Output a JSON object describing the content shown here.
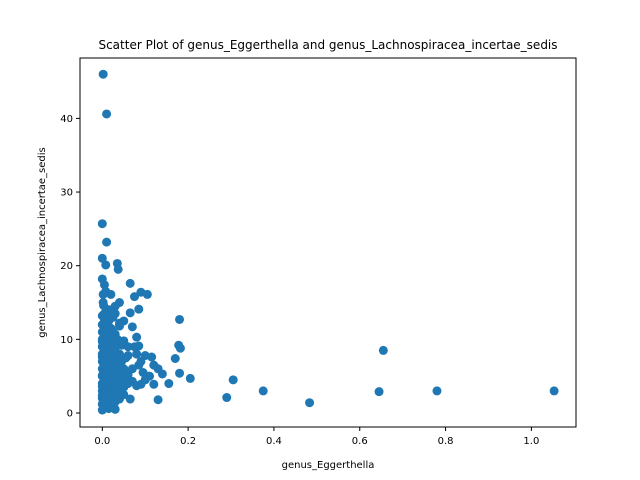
{
  "chart_data": {
    "type": "scatter",
    "title": "Scatter Plot of genus_Eggerthella and genus_Lachnospiracea_incertae_sedis",
    "xlabel": "genus_Eggerthella",
    "ylabel": "genus_Lachnospiracea_incertae_sedis",
    "xlim": [
      -0.052,
      1.104
    ],
    "ylim": [
      -1.9,
      48.2
    ],
    "xticks": [
      0.0,
      0.2,
      0.4,
      0.6,
      0.8,
      1.0
    ],
    "xtick_labels": [
      "0.0",
      "0.2",
      "0.4",
      "0.6",
      "0.8",
      "1.0"
    ],
    "yticks": [
      0,
      10,
      20,
      30,
      40
    ],
    "ytick_labels": [
      "0",
      "10",
      "20",
      "30",
      "40"
    ],
    "grid": false,
    "marker_color": "#1f77b4",
    "series": [
      {
        "points": [
          [
            0.002,
            46.0
          ],
          [
            0.01,
            40.6
          ],
          [
            0.0,
            25.7
          ],
          [
            0.01,
            23.2
          ],
          [
            0.0,
            21.0
          ],
          [
            0.008,
            20.1
          ],
          [
            0.035,
            20.3
          ],
          [
            0.037,
            19.5
          ],
          [
            0.0,
            18.2
          ],
          [
            0.005,
            17.4
          ],
          [
            0.065,
            17.6
          ],
          [
            0.09,
            16.4
          ],
          [
            0.105,
            16.1
          ],
          [
            0.008,
            16.5
          ],
          [
            0.002,
            16.1
          ],
          [
            0.02,
            16.1
          ],
          [
            0.075,
            15.8
          ],
          [
            0.04,
            15.0
          ],
          [
            0.03,
            14.5
          ],
          [
            0.085,
            14.1
          ],
          [
            0.003,
            14.6
          ],
          [
            0.01,
            14.1
          ],
          [
            0.065,
            13.6
          ],
          [
            0.18,
            12.7
          ],
          [
            0.0,
            13.2
          ],
          [
            0.015,
            12.5
          ],
          [
            0.05,
            12.5
          ],
          [
            0.07,
            11.7
          ],
          [
            0.04,
            11.8
          ],
          [
            0.02,
            11.5
          ],
          [
            0.0,
            11.0
          ],
          [
            0.03,
            10.7
          ],
          [
            0.08,
            10.3
          ],
          [
            0.01,
            10.4
          ],
          [
            0.0,
            9.7
          ],
          [
            0.025,
            9.6
          ],
          [
            0.045,
            9.2
          ],
          [
            0.06,
            9.0
          ],
          [
            0.085,
            9.1
          ],
          [
            0.178,
            9.2
          ],
          [
            0.182,
            8.8
          ],
          [
            0.655,
            8.5
          ],
          [
            0.005,
            8.5
          ],
          [
            0.02,
            8.3
          ],
          [
            0.08,
            8.0
          ],
          [
            0.1,
            7.8
          ],
          [
            0.115,
            7.6
          ],
          [
            0.17,
            7.4
          ],
          [
            0.055,
            7.5
          ],
          [
            0.0,
            7.6
          ],
          [
            0.03,
            7.2
          ],
          [
            0.09,
            7.0
          ],
          [
            0.01,
            6.8
          ],
          [
            0.12,
            6.5
          ],
          [
            0.13,
            6.0
          ],
          [
            0.085,
            6.5
          ],
          [
            0.045,
            6.2
          ],
          [
            0.0,
            6.0
          ],
          [
            0.02,
            5.7
          ],
          [
            0.14,
            5.3
          ],
          [
            0.18,
            5.4
          ],
          [
            0.06,
            5.2
          ],
          [
            0.11,
            5.0
          ],
          [
            0.0,
            5.1
          ],
          [
            0.03,
            4.9
          ],
          [
            0.205,
            4.7
          ],
          [
            0.305,
            4.5
          ],
          [
            0.015,
            4.4
          ],
          [
            0.07,
            4.3
          ],
          [
            0.155,
            4.0
          ],
          [
            0.12,
            3.9
          ],
          [
            0.09,
            3.9
          ],
          [
            0.08,
            3.7
          ],
          [
            0.04,
            3.8
          ],
          [
            0.0,
            3.6
          ],
          [
            0.01,
            3.3
          ],
          [
            0.375,
            3.0
          ],
          [
            0.645,
            2.9
          ],
          [
            0.78,
            3.0
          ],
          [
            1.053,
            3.0
          ],
          [
            0.02,
            2.8
          ],
          [
            0.05,
            2.5
          ],
          [
            0.0,
            2.4
          ],
          [
            0.29,
            2.1
          ],
          [
            0.065,
            1.9
          ],
          [
            0.13,
            1.8
          ],
          [
            0.04,
            1.9
          ],
          [
            0.01,
            1.6
          ],
          [
            0.483,
            1.4
          ],
          [
            0.0,
            1.2
          ],
          [
            0.025,
            1.0
          ],
          [
            0.005,
            0.8
          ],
          [
            0.0,
            0.4
          ],
          [
            0.015,
            0.6
          ],
          [
            0.03,
            0.5
          ],
          [
            0.0,
            2.0
          ],
          [
            0.0,
            3.0
          ],
          [
            0.0,
            4.0
          ],
          [
            0.0,
            5.0
          ],
          [
            0.0,
            7.0
          ],
          [
            0.0,
            8.0
          ],
          [
            0.0,
            9.0
          ],
          [
            0.0,
            10.0
          ],
          [
            0.0,
            12.0
          ],
          [
            0.002,
            15.0
          ],
          [
            0.005,
            1.5
          ],
          [
            0.005,
            2.5
          ],
          [
            0.005,
            3.5
          ],
          [
            0.005,
            4.5
          ],
          [
            0.005,
            5.5
          ],
          [
            0.005,
            6.5
          ],
          [
            0.005,
            7.5
          ],
          [
            0.005,
            9.5
          ],
          [
            0.005,
            10.5
          ],
          [
            0.005,
            11.5
          ],
          [
            0.005,
            12.5
          ],
          [
            0.005,
            13.5
          ],
          [
            0.01,
            2.0
          ],
          [
            0.01,
            3.0
          ],
          [
            0.01,
            4.0
          ],
          [
            0.01,
            5.0
          ],
          [
            0.01,
            6.0
          ],
          [
            0.01,
            7.0
          ],
          [
            0.01,
            8.0
          ],
          [
            0.01,
            9.0
          ],
          [
            0.01,
            11.0
          ],
          [
            0.01,
            12.0
          ],
          [
            0.01,
            13.0
          ],
          [
            0.015,
            1.5
          ],
          [
            0.015,
            2.5
          ],
          [
            0.015,
            3.5
          ],
          [
            0.015,
            5.5
          ],
          [
            0.015,
            6.5
          ],
          [
            0.015,
            7.5
          ],
          [
            0.015,
            8.5
          ],
          [
            0.015,
            9.5
          ],
          [
            0.015,
            10.5
          ],
          [
            0.015,
            11.5
          ],
          [
            0.02,
            1.5
          ],
          [
            0.02,
            3.5
          ],
          [
            0.02,
            4.5
          ],
          [
            0.02,
            6.5
          ],
          [
            0.02,
            7.5
          ],
          [
            0.02,
            9.5
          ],
          [
            0.02,
            10.5
          ],
          [
            0.025,
            2.0
          ],
          [
            0.025,
            3.0
          ],
          [
            0.025,
            4.0
          ],
          [
            0.025,
            5.0
          ],
          [
            0.025,
            6.0
          ],
          [
            0.025,
            7.0
          ],
          [
            0.025,
            8.0
          ],
          [
            0.025,
            11.0
          ],
          [
            0.03,
            1.5
          ],
          [
            0.03,
            2.5
          ],
          [
            0.03,
            3.5
          ],
          [
            0.03,
            6.0
          ],
          [
            0.03,
            8.5
          ],
          [
            0.03,
            9.5
          ],
          [
            0.035,
            2.0
          ],
          [
            0.035,
            4.0
          ],
          [
            0.035,
            5.5
          ],
          [
            0.035,
            6.8
          ],
          [
            0.035,
            10.0
          ],
          [
            0.04,
            3.0
          ],
          [
            0.04,
            5.0
          ],
          [
            0.04,
            8.0
          ],
          [
            0.045,
            4.5
          ],
          [
            0.045,
            7.0
          ],
          [
            0.05,
            3.5
          ],
          [
            0.05,
            6.0
          ],
          [
            0.05,
            9.8
          ],
          [
            0.055,
            5.0
          ],
          [
            0.06,
            4.0
          ],
          [
            0.06,
            7.8
          ],
          [
            0.07,
            6.0
          ],
          [
            0.075,
            9.0
          ],
          [
            0.095,
            5.5
          ],
          [
            0.1,
            4.5
          ],
          [
            0.04,
            12.2
          ],
          [
            0.025,
            13.0
          ],
          [
            0.03,
            13.5
          ],
          [
            0.018,
            14.0
          ]
        ]
      }
    ]
  }
}
